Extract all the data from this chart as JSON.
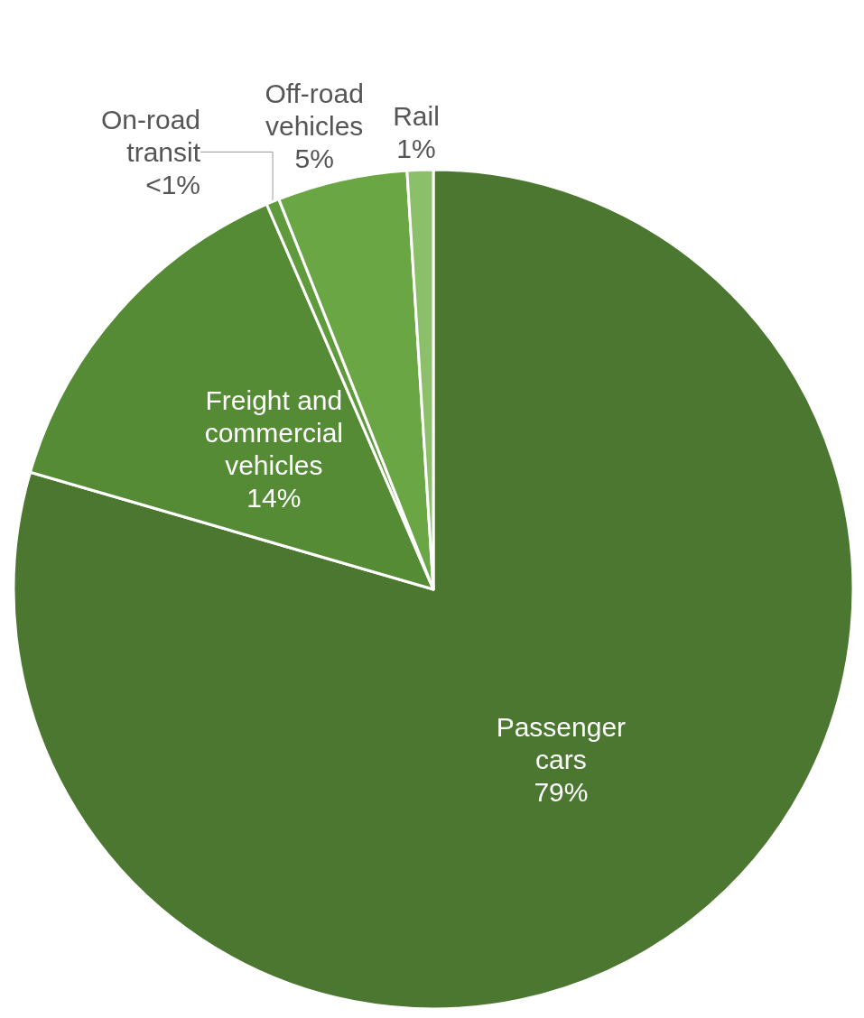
{
  "chart_data": {
    "type": "pie",
    "categories": [
      "Passenger\ncars",
      "Freight and\ncommercial\nvehicles",
      "On-road\ntransit",
      "Off-road\nvehicles",
      "Rail"
    ],
    "values": [
      79.5,
      14,
      0.5,
      5,
      1
    ],
    "value_labels": [
      "79%",
      "14%",
      "<1%",
      "5%",
      "1%"
    ],
    "colors": [
      "#4b7730",
      "#558b35",
      "#5f9a3c",
      "#6aa644",
      "#8cbf6a"
    ]
  }
}
